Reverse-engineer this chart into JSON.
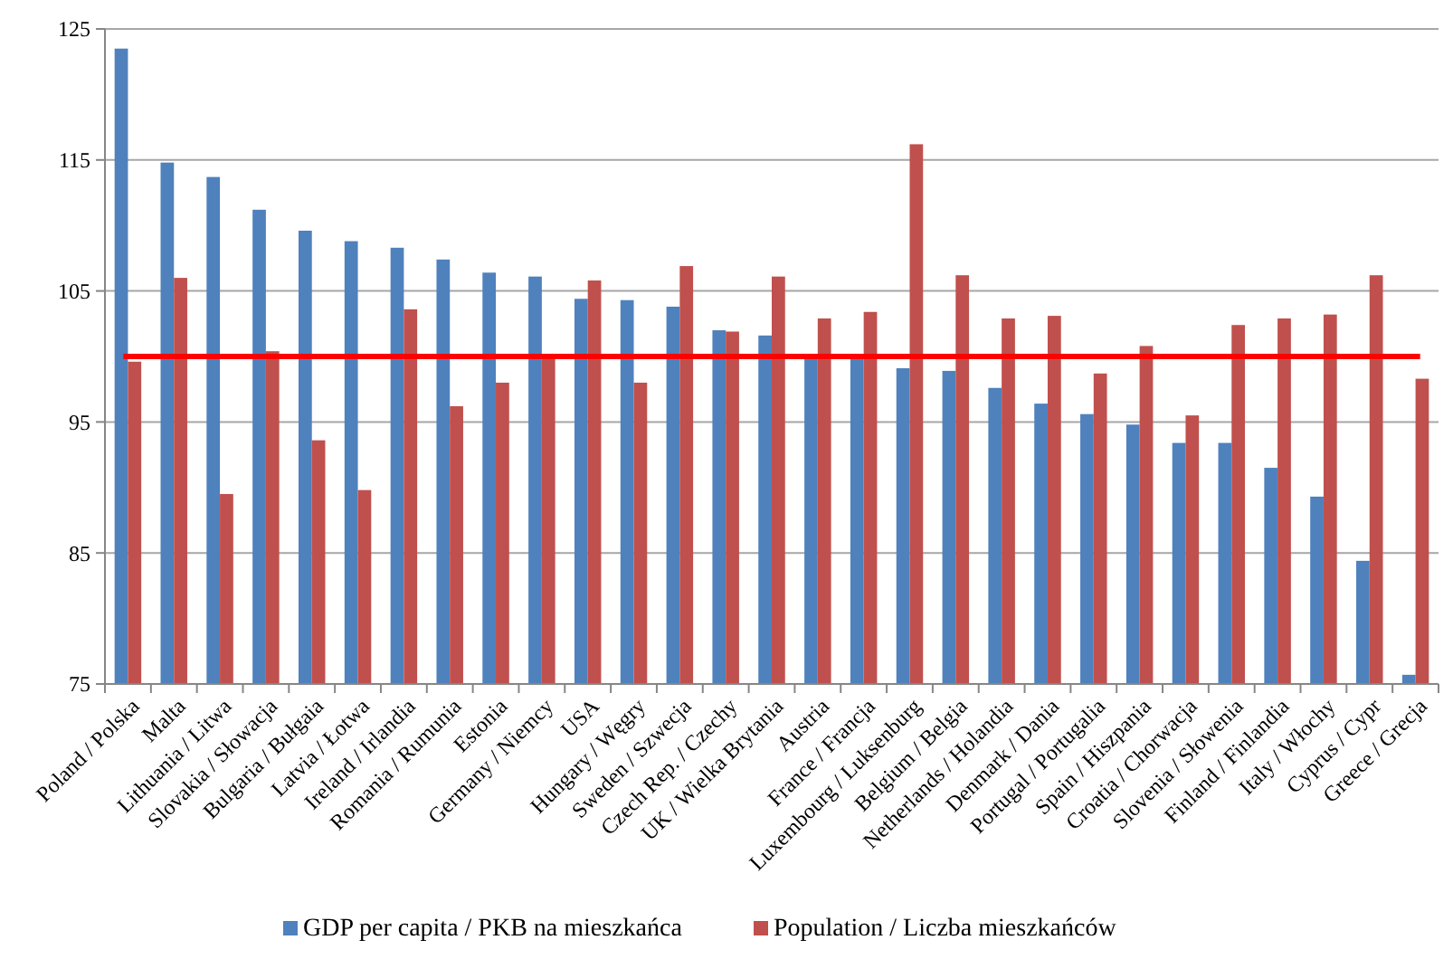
{
  "chart_data": {
    "type": "bar",
    "categories": [
      "Poland / Polska",
      "Malta",
      "Lithuania / Litwa",
      "Slovakia / Słowacja",
      "Bulgaria / Bułgaia",
      "Latvia / Łotwa",
      "Ireland / Irlandia",
      "Romania / Rumunia",
      "Estonia",
      "Germany / Niemcy",
      "USA",
      "Hungary / Węgry",
      "Sweden / Szwecja",
      "Czech Rep. / Czechy",
      "UK / Wielka Brytania",
      "Austria",
      "France / Francja",
      "Luxembourg / Luksenburg",
      "Belgium / Belgia",
      "Netherlands / Holandia",
      "Denmark / Dania",
      "Portugal / Portugalia",
      "Spain / Hiszpania",
      "Croatia / Chorwacja",
      "Slovenia / Słowenia",
      "Finland / Finlandia",
      "Italy / Włochy",
      "Cyprus / Cypr",
      "Greece / Grecja"
    ],
    "series": [
      {
        "name": "GDP per capita / PKB na mieszkańca",
        "color": "#4f81bd",
        "values": [
          123.5,
          114.8,
          113.7,
          111.2,
          109.6,
          108.8,
          108.3,
          107.4,
          106.4,
          106.1,
          104.4,
          104.3,
          103.8,
          102.0,
          101.6,
          100.0,
          99.9,
          99.1,
          98.9,
          97.6,
          96.4,
          95.6,
          94.8,
          93.4,
          93.4,
          91.5,
          89.3,
          84.4,
          75.7
        ]
      },
      {
        "name": "Population / Liczba mieszkańców",
        "color": "#c0504d",
        "values": [
          99.6,
          106.0,
          89.5,
          100.4,
          93.6,
          89.8,
          103.6,
          96.2,
          98.0,
          100.0,
          105.8,
          98.0,
          106.9,
          101.9,
          106.1,
          102.9,
          103.4,
          116.2,
          106.2,
          102.9,
          103.1,
          98.7,
          100.8,
          95.5,
          102.4,
          102.9,
          103.2,
          106.2,
          98.3
        ]
      }
    ],
    "ylim": [
      75,
      125
    ],
    "yticks": [
      75,
      85,
      95,
      105,
      115,
      125
    ],
    "grid": "y",
    "legend": "bottom",
    "ref_lines": [
      {
        "axis": "y",
        "value": 100,
        "color": "#ff0000"
      }
    ]
  }
}
